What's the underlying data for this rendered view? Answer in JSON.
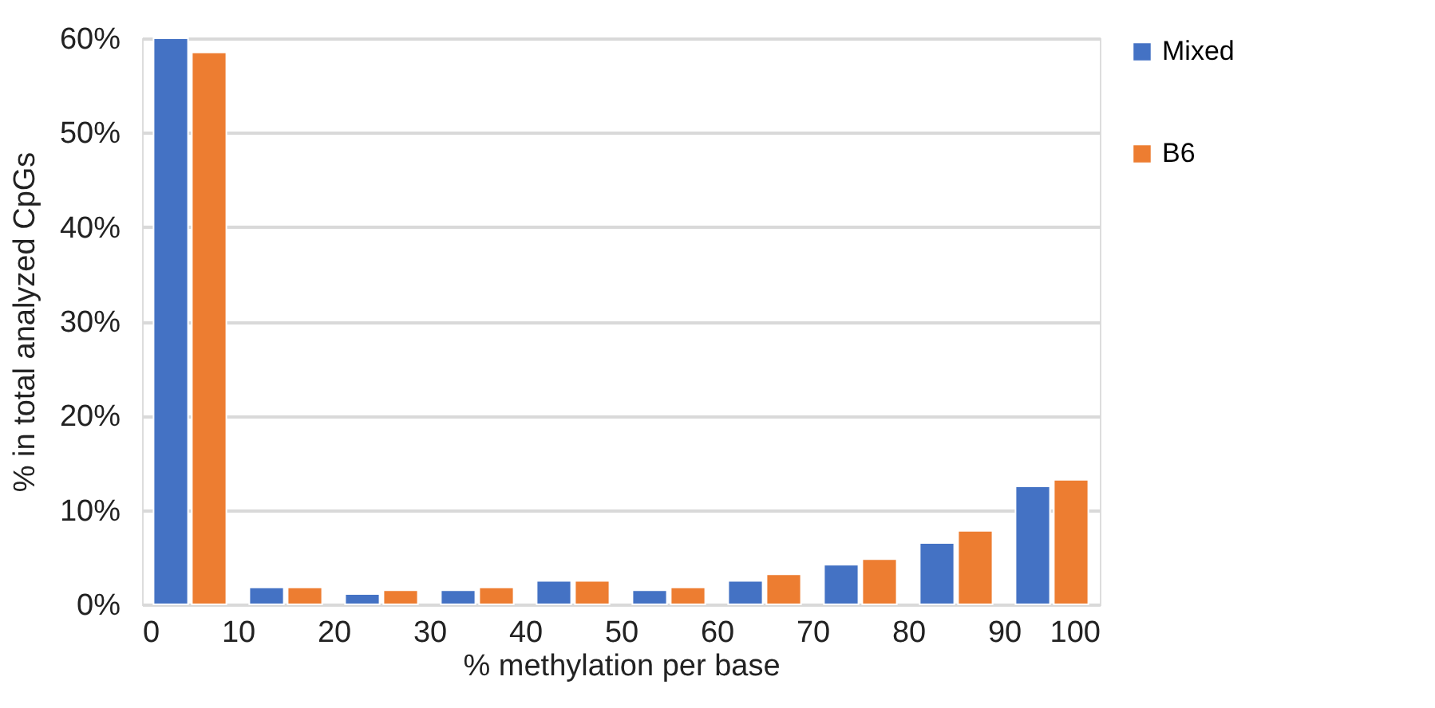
{
  "chart_data": {
    "type": "histogram",
    "xlabel": "% methylation per base",
    "ylabel": "% in total analyzed CpGs",
    "bins": [
      0,
      10,
      20,
      30,
      40,
      50,
      60,
      70,
      80,
      90,
      100
    ],
    "series": [
      {
        "name": "Mixed",
        "color": "#4472c4",
        "values": [
          60,
          1.8,
          1.1,
          1.5,
          2.5,
          1.5,
          2.5,
          4.2,
          6.5,
          12.5
        ]
      },
      {
        "name": "B6",
        "color": "#ed7d31",
        "values": [
          58.5,
          1.8,
          1.5,
          1.8,
          2.5,
          1.8,
          3.2,
          4.8,
          7.8,
          13.2
        ]
      }
    ],
    "xlim": [
      0,
      100
    ],
    "xticks": [
      0,
      10,
      20,
      30,
      40,
      50,
      60,
      70,
      80,
      90,
      100
    ],
    "ylim": [
      0,
      60
    ],
    "yticks": [
      {
        "value": 0,
        "label": "0%"
      },
      {
        "value": 10,
        "label": "10%"
      },
      {
        "value": 20,
        "label": "20%"
      },
      {
        "value": 30,
        "label": "30%"
      },
      {
        "value": 40,
        "label": "40%"
      },
      {
        "value": 50,
        "label": "50%"
      },
      {
        "value": 60,
        "label": "60%"
      }
    ],
    "grid": "y",
    "legend": "right"
  }
}
